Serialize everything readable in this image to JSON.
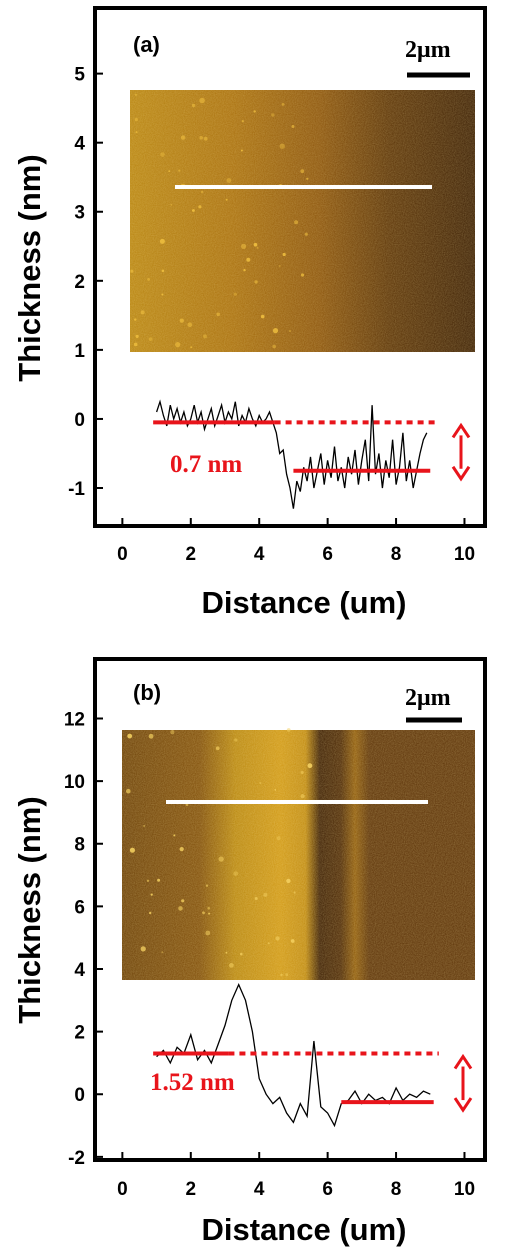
{
  "chart_data": [
    {
      "type": "line",
      "panel_label": "(a)",
      "xlabel": "Distance (um)",
      "ylabel": "Thickness (nm)",
      "xlim": [
        -0.8,
        10.6
      ],
      "ylim": [
        -1.55,
        5.95
      ],
      "xticks": [
        "0",
        "2",
        "4",
        "6",
        "8",
        "10"
      ],
      "yticks": [
        "-1",
        "0",
        "1",
        "2",
        "3",
        "4",
        "5"
      ],
      "scale_bar": "2μm",
      "annotation": "0.7 nm",
      "step_height_nm": 0.7,
      "upper_level_nm": -0.05,
      "lower_level_nm": -0.75,
      "series": [
        {
          "x": [
            1.0,
            1.1,
            1.2,
            1.3,
            1.4,
            1.5,
            1.6,
            1.7,
            1.8,
            1.9,
            2.0,
            2.1,
            2.2,
            2.3,
            2.4,
            2.5,
            2.6,
            2.7,
            2.8,
            2.9,
            3.0,
            3.1,
            3.2,
            3.3,
            3.4,
            3.5,
            3.6,
            3.7,
            3.8,
            3.9,
            4.0,
            4.1,
            4.2,
            4.3,
            4.4,
            4.5,
            4.6,
            4.7,
            4.8,
            4.9,
            5.0,
            5.1,
            5.2,
            5.3,
            5.4,
            5.5,
            5.6,
            5.7,
            5.8,
            5.9,
            6.0,
            6.1,
            6.2,
            6.3,
            6.4,
            6.5,
            6.6,
            6.7,
            6.8,
            6.9,
            7.0,
            7.1,
            7.2,
            7.3,
            7.4,
            7.5,
            7.6,
            7.7,
            7.8,
            7.9,
            8.0,
            8.1,
            8.2,
            8.3,
            8.4,
            8.5,
            8.6,
            8.7,
            8.8,
            8.9
          ],
          "y": [
            0.1,
            0.25,
            0.05,
            -0.1,
            0.2,
            0.0,
            0.15,
            -0.05,
            0.1,
            -0.1,
            0.0,
            0.2,
            -0.05,
            0.1,
            -0.15,
            0.0,
            0.15,
            -0.1,
            0.05,
            0.2,
            -0.05,
            0.1,
            0.0,
            0.25,
            -0.1,
            0.05,
            -0.05,
            0.15,
            0.0,
            -0.1,
            0.05,
            -0.05,
            0.0,
            0.1,
            -0.05,
            -0.2,
            -0.5,
            -0.45,
            -0.8,
            -1.0,
            -1.3,
            -0.9,
            -1.05,
            -0.7,
            -0.9,
            -0.55,
            -1.0,
            -0.75,
            -0.5,
            -0.95,
            -0.6,
            -0.85,
            -0.4,
            -0.9,
            -0.7,
            -1.0,
            -0.55,
            -0.8,
            -0.45,
            -0.95,
            -0.6,
            -0.3,
            -0.9,
            0.2,
            -0.8,
            -0.5,
            -1.0,
            -0.6,
            -0.85,
            -0.3,
            -0.95,
            -0.7,
            -0.2,
            -0.9,
            -0.6,
            -1.0,
            -0.75,
            -0.5,
            -0.3,
            -0.2
          ]
        }
      ]
    },
    {
      "type": "line",
      "panel_label": "(b)",
      "xlabel": "Distance (um)",
      "ylabel": "Thickness (nm)",
      "xlim": [
        -0.8,
        10.6
      ],
      "ylim": [
        -2.1,
        13.9
      ],
      "xticks": [
        "0",
        "2",
        "4",
        "6",
        "8",
        "10"
      ],
      "yticks": [
        "-2",
        "0",
        "2",
        "4",
        "6",
        "8",
        "10",
        "12"
      ],
      "scale_bar": "2μm",
      "annotation": "1.52 nm",
      "step_height_nm": 1.52,
      "upper_level_nm": 1.3,
      "lower_level_nm": -0.25,
      "series": [
        {
          "x": [
            1.0,
            1.2,
            1.4,
            1.6,
            1.8,
            2.0,
            2.2,
            2.4,
            2.6,
            2.8,
            3.0,
            3.2,
            3.4,
            3.6,
            3.8,
            4.0,
            4.2,
            4.4,
            4.6,
            4.8,
            5.0,
            5.2,
            5.4,
            5.6,
            5.8,
            6.0,
            6.2,
            6.4,
            6.6,
            6.8,
            7.0,
            7.2,
            7.4,
            7.6,
            7.8,
            8.0,
            8.2,
            8.4,
            8.6,
            8.8,
            9.0
          ],
          "y": [
            1.2,
            1.4,
            1.0,
            1.5,
            1.3,
            1.9,
            1.1,
            1.4,
            1.0,
            1.6,
            2.2,
            3.0,
            3.5,
            3.0,
            2.0,
            0.5,
            0.0,
            -0.3,
            -0.1,
            -0.6,
            -0.9,
            -0.3,
            -0.7,
            1.7,
            -0.4,
            -0.6,
            -1.0,
            -0.3,
            -0.2,
            0.1,
            -0.3,
            0.0,
            -0.2,
            -0.1,
            -0.3,
            0.2,
            -0.2,
            0.0,
            -0.1,
            0.1,
            0.0
          ]
        }
      ]
    }
  ]
}
